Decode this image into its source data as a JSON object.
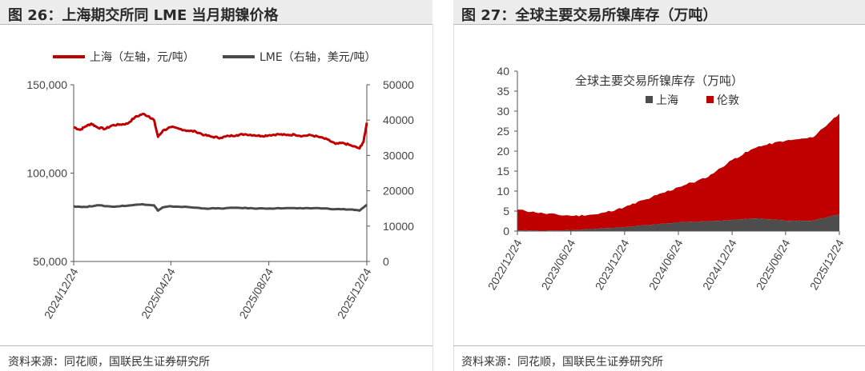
{
  "left": {
    "title": "图 26：上海期交所同 LME 当月期镍价格",
    "source": "资料来源：同花顺，国联民生证券研究所",
    "chart_data": {
      "type": "line",
      "title": "",
      "legend": [
        "上海（左轴，元/吨）",
        "LME（右轴，美元/吨）"
      ],
      "legend_position": "top",
      "grid": false,
      "y_left": {
        "ticks": [
          "150,000",
          "100,000",
          "50,000"
        ],
        "range": [
          50000,
          150000
        ]
      },
      "y_right": {
        "ticks": [
          "50000",
          "40000",
          "30000",
          "20000",
          "10000",
          "0"
        ],
        "range": [
          0,
          50000
        ]
      },
      "x_ticks": [
        "2024/12/24",
        "2025/04/24",
        "2025/08/24",
        "2025/12/24"
      ],
      "series": [
        {
          "name": "上海（左轴，元/吨）",
          "axis": "left",
          "color": "#c00000",
          "points": [
            [
              "2024-12-24",
              126000
            ],
            [
              "2025-01-01",
              124500
            ],
            [
              "2025-01-08",
              126500
            ],
            [
              "2025-01-15",
              128000
            ],
            [
              "2025-01-22",
              126000
            ],
            [
              "2025-02-01",
              125000
            ],
            [
              "2025-02-10",
              127000
            ],
            [
              "2025-02-20",
              127500
            ],
            [
              "2025-03-01",
              128000
            ],
            [
              "2025-03-10",
              131500
            ],
            [
              "2025-03-20",
              133500
            ],
            [
              "2025-03-28",
              132000
            ],
            [
              "2025-04-03",
              130000
            ],
            [
              "2025-04-08",
              120500
            ],
            [
              "2025-04-14",
              124000
            ],
            [
              "2025-04-24",
              126000
            ],
            [
              "2025-05-05",
              125000
            ],
            [
              "2025-05-15",
              124000
            ],
            [
              "2025-05-25",
              123500
            ],
            [
              "2025-06-05",
              121500
            ],
            [
              "2025-06-15",
              120500
            ],
            [
              "2025-06-25",
              120000
            ],
            [
              "2025-07-05",
              121000
            ],
            [
              "2025-07-15",
              121500
            ],
            [
              "2025-07-25",
              122000
            ],
            [
              "2025-08-05",
              121500
            ],
            [
              "2025-08-15",
              121000
            ],
            [
              "2025-08-25",
              121500
            ],
            [
              "2025-09-05",
              122000
            ],
            [
              "2025-09-15",
              121500
            ],
            [
              "2025-09-25",
              121800
            ],
            [
              "2025-10-05",
              121000
            ],
            [
              "2025-10-15",
              121500
            ],
            [
              "2025-10-25",
              120500
            ],
            [
              "2025-11-05",
              119000
            ],
            [
              "2025-11-15",
              116500
            ],
            [
              "2025-11-25",
              117000
            ],
            [
              "2025-12-05",
              115500
            ],
            [
              "2025-12-15",
              114000
            ],
            [
              "2025-12-20",
              118000
            ],
            [
              "2025-12-24",
              128500
            ]
          ]
        },
        {
          "name": "LME（右轴，美元/吨）",
          "axis": "right",
          "color": "#4a4a4a",
          "points": [
            [
              "2024-12-24",
              15600
            ],
            [
              "2025-01-08",
              15400
            ],
            [
              "2025-01-22",
              15900
            ],
            [
              "2025-02-10",
              15500
            ],
            [
              "2025-03-01",
              15800
            ],
            [
              "2025-03-20",
              16200
            ],
            [
              "2025-04-03",
              15900
            ],
            [
              "2025-04-08",
              14400
            ],
            [
              "2025-04-14",
              15300
            ],
            [
              "2025-04-24",
              15600
            ],
            [
              "2025-05-15",
              15400
            ],
            [
              "2025-06-05",
              15000
            ],
            [
              "2025-06-25",
              15000
            ],
            [
              "2025-07-15",
              15200
            ],
            [
              "2025-08-05",
              15000
            ],
            [
              "2025-08-25",
              15000
            ],
            [
              "2025-09-15",
              15100
            ],
            [
              "2025-10-05",
              15000
            ],
            [
              "2025-10-25",
              15100
            ],
            [
              "2025-11-15",
              14800
            ],
            [
              "2025-12-05",
              14700
            ],
            [
              "2025-12-15",
              14400
            ],
            [
              "2025-12-24",
              16000
            ]
          ]
        }
      ]
    }
  },
  "right": {
    "title": "图 27：全球主要交易所镍库存（万吨）",
    "source": "资料来源：同花顺，国联民生证券研究所",
    "chart_data": {
      "type": "area",
      "title": "全球主要交易所镍库存（万吨）",
      "legend": [
        "上海",
        "伦敦"
      ],
      "legend_position": "top",
      "grid": false,
      "stacked": true,
      "y_ticks": [
        "40",
        "35",
        "30",
        "25",
        "20",
        "15",
        "10",
        "5",
        "0"
      ],
      "ylim": [
        0,
        40
      ],
      "x_ticks": [
        "2022/12/24",
        "2023/06/24",
        "2023/12/24",
        "2024/06/24",
        "2024/12/24",
        "2025/06/24",
        "2025/12/24"
      ],
      "series": [
        {
          "name": "上海",
          "color": "#4d4d4d",
          "points": [
            [
              "2022-12-24",
              0.2
            ],
            [
              "2023-03-24",
              0.1
            ],
            [
              "2023-06-24",
              0.2
            ],
            [
              "2023-09-24",
              0.6
            ],
            [
              "2023-12-24",
              1.0
            ],
            [
              "2024-03-24",
              1.6
            ],
            [
              "2024-06-24",
              2.2
            ],
            [
              "2024-09-24",
              2.4
            ],
            [
              "2024-12-24",
              2.8
            ],
            [
              "2025-03-24",
              3.2
            ],
            [
              "2025-06-24",
              2.6
            ],
            [
              "2025-09-24",
              2.6
            ],
            [
              "2025-12-24",
              4.2
            ]
          ]
        },
        {
          "name": "伦敦",
          "color": "#c00000",
          "points": [
            [
              "2022-12-24",
              5.2
            ],
            [
              "2023-03-24",
              4.3
            ],
            [
              "2023-06-24",
              3.6
            ],
            [
              "2023-09-24",
              3.6
            ],
            [
              "2023-12-24",
              5.0
            ],
            [
              "2024-03-24",
              6.8
            ],
            [
              "2024-06-24",
              8.8
            ],
            [
              "2024-09-24",
              10.8
            ],
            [
              "2024-12-24",
              15.0
            ],
            [
              "2025-03-24",
              18.0
            ],
            [
              "2025-06-24",
              20.0
            ],
            [
              "2025-09-24",
              20.8
            ],
            [
              "2025-12-24",
              25.2
            ]
          ]
        }
      ]
    }
  }
}
